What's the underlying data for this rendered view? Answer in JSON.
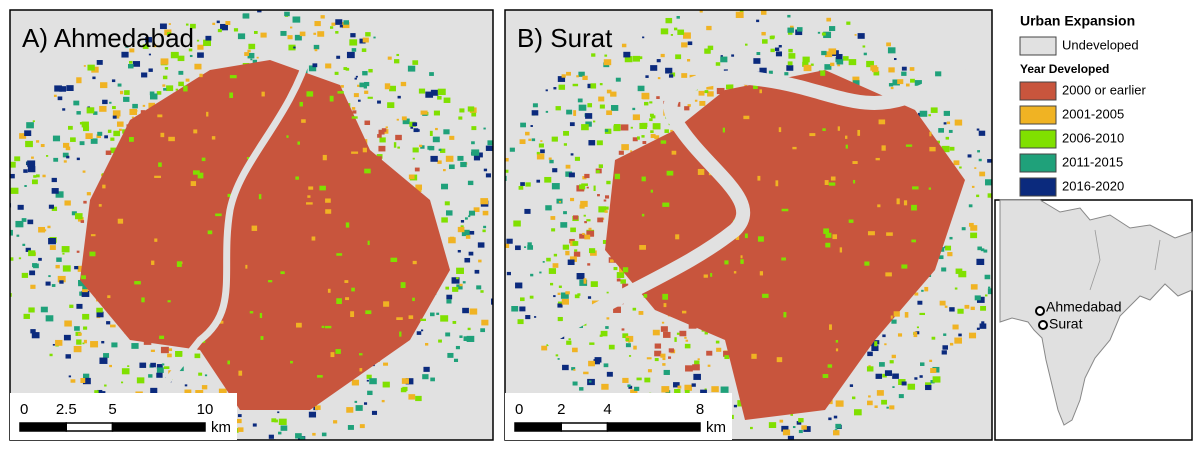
{
  "panels": [
    {
      "title": "A) Ahmedabad",
      "scale_bar": {
        "ticks": [
          0,
          2.5,
          5,
          10
        ],
        "unit": "km"
      }
    },
    {
      "title": "B) Surat",
      "scale_bar": {
        "ticks": [
          0,
          2,
          4,
          8
        ],
        "unit": "km"
      }
    }
  ],
  "legend": {
    "title": "Urban Expansion",
    "base": {
      "label": "Undeveloped",
      "color": "#e1e1e1"
    },
    "subtitle": "Year Developed",
    "items": [
      {
        "label": "2000 or earlier",
        "color": "#c8553d"
      },
      {
        "label": "2001-2005",
        "color": "#f0b323"
      },
      {
        "label": "2006-2010",
        "color": "#80e000"
      },
      {
        "label": "2011-2015",
        "color": "#1fa17a"
      },
      {
        "label": "2016-2020",
        "color": "#0b2a7d"
      }
    ]
  },
  "inset": {
    "places": [
      "Ahmedabad",
      "Surat"
    ]
  }
}
